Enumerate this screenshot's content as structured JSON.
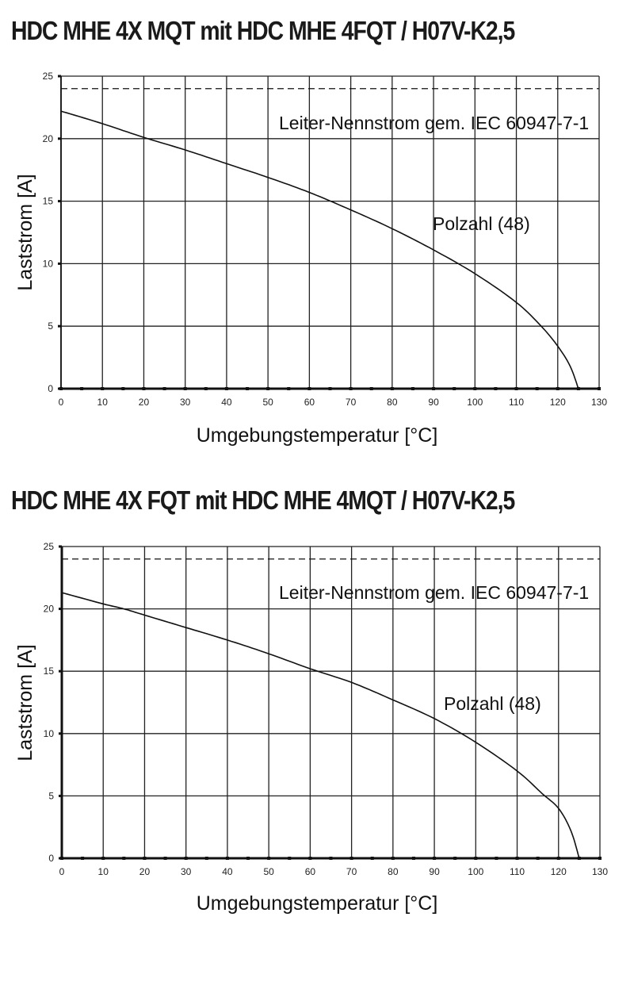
{
  "charts": [
    {
      "title": "HDC MHE 4X MQT mit HDC MHE 4FQT / H07V-K2,5",
      "ylabel": "Laststrom [A]",
      "xlabel": "Umgebungstemperatur [°C]",
      "reference_label": "Leiter-Nennstrom gem. IEC 60947-7-1",
      "series_label": "Polzahl (48)"
    },
    {
      "title": "HDC MHE 4X FQT mit HDC MHE 4MQT / H07V-K2,5",
      "ylabel": "Laststrom [A]",
      "xlabel": "Umgebungstemperatur [°C]",
      "reference_label": "Leiter-Nennstrom gem. IEC 60947-7-1",
      "series_label": "Polzahl (48)"
    }
  ],
  "chart_data": [
    {
      "type": "line",
      "title": "HDC MHE 4X MQT mit HDC MHE 4FQT / H07V-K2,5",
      "xlabel": "Umgebungstemperatur [°C]",
      "ylabel": "Laststrom [A]",
      "xlim": [
        0,
        130
      ],
      "ylim": [
        0,
        25
      ],
      "xticks": [
        0,
        10,
        20,
        30,
        40,
        50,
        60,
        70,
        80,
        90,
        100,
        110,
        120,
        130
      ],
      "yticks": [
        0,
        5,
        10,
        15,
        20,
        25
      ],
      "grid": true,
      "series": [
        {
          "name": "Polzahl (48)",
          "style": "solid",
          "x": [
            0,
            10,
            20,
            30,
            40,
            50,
            60,
            70,
            80,
            90,
            100,
            110,
            116,
            120,
            123,
            125
          ],
          "y": [
            22.2,
            21.2,
            20.1,
            19.1,
            18.0,
            16.9,
            15.7,
            14.3,
            12.8,
            11.1,
            9.2,
            6.9,
            5.0,
            3.4,
            1.8,
            0
          ]
        },
        {
          "name": "Leiter-Nennstrom gem. IEC 60947-7-1",
          "style": "dashed",
          "x": [
            0,
            130
          ],
          "y": [
            24,
            24
          ]
        }
      ],
      "annotations": [
        {
          "text": "Leiter-Nennstrom gem. IEC 60947-7-1",
          "x": 105,
          "y": 21.5
        },
        {
          "text": "Polzahl (48)",
          "x": 109,
          "y": 13.2
        }
      ]
    },
    {
      "type": "line",
      "title": "HDC MHE 4X FQT mit HDC MHE 4MQT / H07V-K2,5",
      "xlabel": "Umgebungstemperatur [°C]",
      "ylabel": "Laststrom [A]",
      "xlim": [
        0,
        130
      ],
      "ylim": [
        0,
        25
      ],
      "xticks": [
        0,
        10,
        20,
        30,
        40,
        50,
        60,
        70,
        80,
        90,
        100,
        110,
        120,
        130
      ],
      "yticks": [
        0,
        5,
        10,
        15,
        20,
        25
      ],
      "grid": true,
      "series": [
        {
          "name": "Polzahl (48)",
          "style": "solid",
          "x": [
            0,
            10,
            15,
            20,
            30,
            40,
            50,
            60,
            70,
            80,
            90,
            100,
            110,
            116,
            120,
            123,
            125
          ],
          "y": [
            21.3,
            20.4,
            20.0,
            19.5,
            18.5,
            17.5,
            16.4,
            15.2,
            14.1,
            12.7,
            11.2,
            9.3,
            7.0,
            5.2,
            4.0,
            2.2,
            0
          ]
        },
        {
          "name": "Leiter-Nennstrom gem. IEC 60947-7-1",
          "style": "dashed",
          "x": [
            0,
            130
          ],
          "y": [
            24,
            24
          ]
        }
      ],
      "annotations": [
        {
          "text": "Leiter-Nennstrom gem. IEC 60947-7-1",
          "x": 105,
          "y": 21.5
        },
        {
          "text": "Polzahl (48)",
          "x": 112,
          "y": 12.5
        }
      ]
    }
  ]
}
